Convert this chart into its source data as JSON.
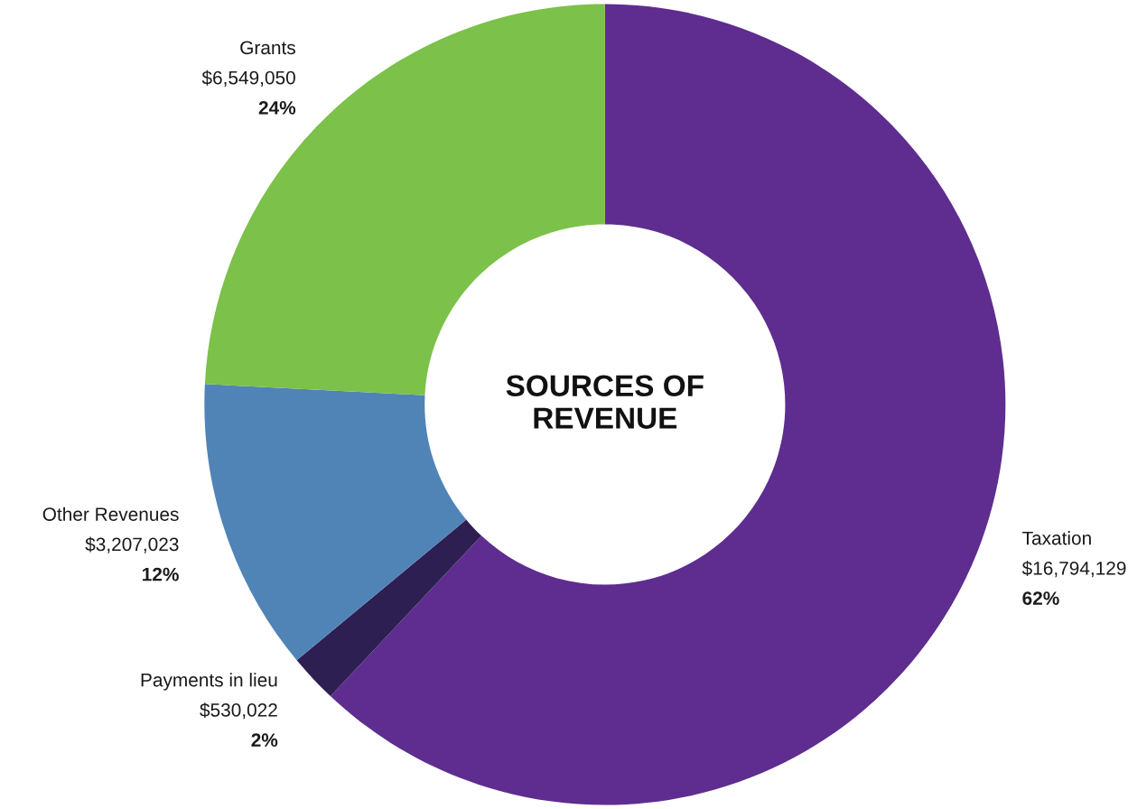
{
  "chart_data": {
    "type": "donut",
    "title": "SOURCES OF\nREVENUE",
    "categories": [
      "Taxation",
      "Payments in lieu",
      "Other Revenues",
      "Grants"
    ],
    "values": [
      16794129,
      530022,
      3207023,
      6549050
    ],
    "colors": [
      "#5e2d8f",
      "#2e1f52",
      "#5084b7",
      "#7bc14a"
    ],
    "value_labels": [
      "$16,794,129\n62%",
      "$530,022\n2%",
      "$3,207,023\n12%",
      "$6,549,050\n24%"
    ],
    "legend": false
  }
}
